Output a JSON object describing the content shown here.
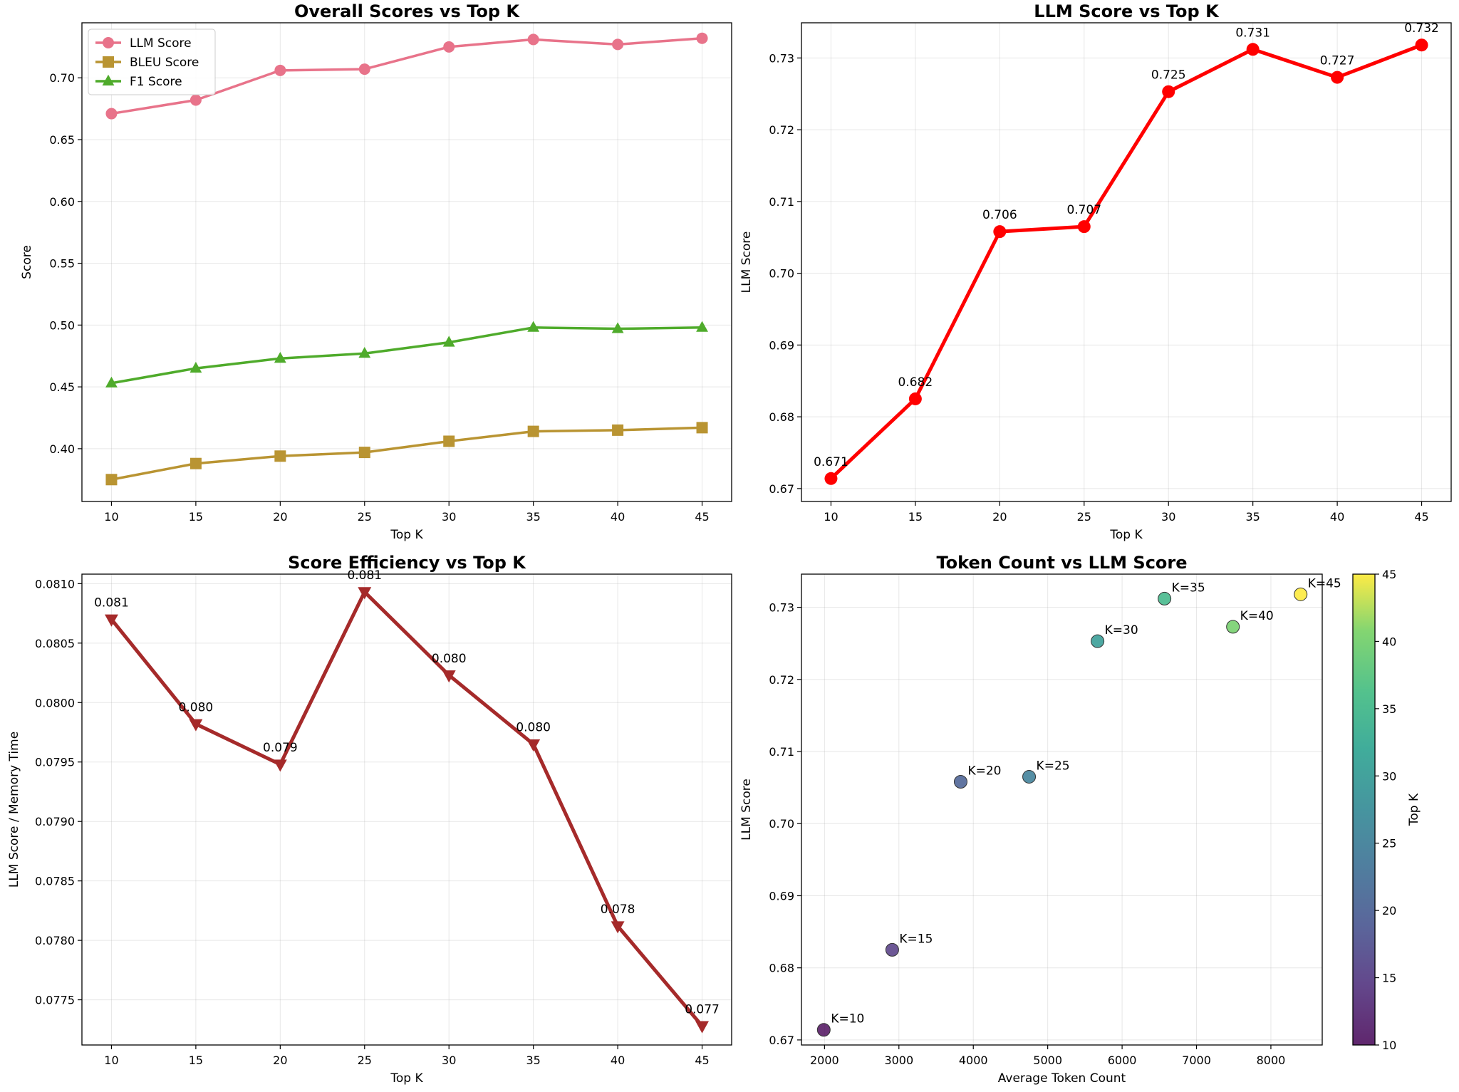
{
  "chart_data": [
    {
      "type": "line",
      "title": "Overall Scores vs Top K",
      "xlabel": "Top K",
      "ylabel": "Score",
      "x": [
        10,
        15,
        20,
        25,
        30,
        35,
        40,
        45
      ],
      "xticks": [
        "10",
        "15",
        "20",
        "25",
        "30",
        "35",
        "40",
        "45"
      ],
      "xlim": [
        8.25,
        46.75
      ],
      "yticks": [
        "0.40",
        "0.45",
        "0.50",
        "0.55",
        "0.60",
        "0.65",
        "0.70"
      ],
      "ylim": [
        0.3573,
        0.7445
      ],
      "grid": true,
      "legend": "top-left",
      "series": [
        {
          "name": "LLM Score",
          "values": [
            0.671,
            0.682,
            0.706,
            0.707,
            0.725,
            0.731,
            0.727,
            0.732
          ],
          "color": "#e8738a",
          "marker": "circle"
        },
        {
          "name": "BLEU Score",
          "values": [
            0.375,
            0.388,
            0.394,
            0.397,
            0.406,
            0.414,
            0.415,
            0.417
          ],
          "color": "#b99432",
          "marker": "square"
        },
        {
          "name": "F1 Score",
          "values": [
            0.453,
            0.465,
            0.473,
            0.477,
            0.486,
            0.498,
            0.497,
            0.498
          ],
          "color": "#4fab2b",
          "marker": "triangle-up"
        }
      ]
    },
    {
      "type": "line",
      "title": "LLM Score vs Top K",
      "xlabel": "Top K",
      "ylabel": "LLM Score",
      "x": [
        10,
        15,
        20,
        25,
        30,
        35,
        40,
        45
      ],
      "xticks": [
        "10",
        "15",
        "20",
        "25",
        "30",
        "35",
        "40",
        "45"
      ],
      "xlim": [
        8.25,
        46.75
      ],
      "yticks": [
        "0.67",
        "0.68",
        "0.69",
        "0.70",
        "0.71",
        "0.72",
        "0.73"
      ],
      "ylim": [
        0.6682,
        0.7349
      ],
      "grid": true,
      "series": [
        {
          "values": [
            0.6714,
            0.6825,
            0.7058,
            0.7065,
            0.7253,
            0.7312,
            0.7273,
            0.7318
          ],
          "color": "#ff0000",
          "marker": "circle"
        }
      ],
      "labels": [
        "0.671",
        "0.682",
        "0.706",
        "0.707",
        "0.725",
        "0.731",
        "0.727",
        "0.732"
      ]
    },
    {
      "type": "line",
      "title": "Score Efficiency vs Top K",
      "xlabel": "Top K",
      "ylabel": "LLM Score / Memory Time",
      "x": [
        10,
        15,
        20,
        25,
        30,
        35,
        40,
        45
      ],
      "xticks": [
        "10",
        "15",
        "20",
        "25",
        "30",
        "35",
        "40",
        "45"
      ],
      "xlim": [
        8.25,
        46.75
      ],
      "yticks": [
        "0.0775",
        "0.0780",
        "0.0785",
        "0.0790",
        "0.0795",
        "0.0800",
        "0.0805",
        "0.0810"
      ],
      "ylim": [
        0.07712,
        0.08108
      ],
      "grid": true,
      "series": [
        {
          "values": [
            0.0807,
            0.07982,
            0.07948,
            0.08093,
            0.08023,
            0.07965,
            0.07812,
            0.07728
          ],
          "color": "#a52a2a",
          "marker": "triangle-down"
        }
      ],
      "labels": [
        "0.081",
        "0.080",
        "0.079",
        "0.081",
        "0.080",
        "0.080",
        "0.078",
        "0.077"
      ]
    },
    {
      "type": "scatter",
      "title": "Token Count vs LLM Score",
      "xlabel": "Average Token Count",
      "ylabel": "LLM Score",
      "x": [
        1990,
        2910,
        3830,
        4750,
        5670,
        6570,
        7490,
        8400
      ],
      "y": [
        0.6714,
        0.6825,
        0.7058,
        0.7065,
        0.7253,
        0.7312,
        0.7273,
        0.7318
      ],
      "k": [
        10,
        15,
        20,
        25,
        30,
        35,
        40,
        45
      ],
      "point_labels": [
        "K=10",
        "K=15",
        "K=20",
        "K=25",
        "K=30",
        "K=35",
        "K=40",
        "K=45"
      ],
      "xticks": [
        "2000",
        "3000",
        "4000",
        "5000",
        "6000",
        "7000",
        "8000"
      ],
      "xlim": [
        1690,
        8690
      ],
      "yticks": [
        "0.67",
        "0.68",
        "0.69",
        "0.70",
        "0.71",
        "0.72",
        "0.73"
      ],
      "ylim": [
        0.6693,
        0.7346
      ],
      "grid": true,
      "colormap": "viridis",
      "colorbar": {
        "label": "Top K",
        "ticks": [
          "10",
          "15",
          "20",
          "25",
          "30",
          "35",
          "40",
          "45"
        ],
        "range": [
          10,
          45
        ]
      }
    }
  ]
}
